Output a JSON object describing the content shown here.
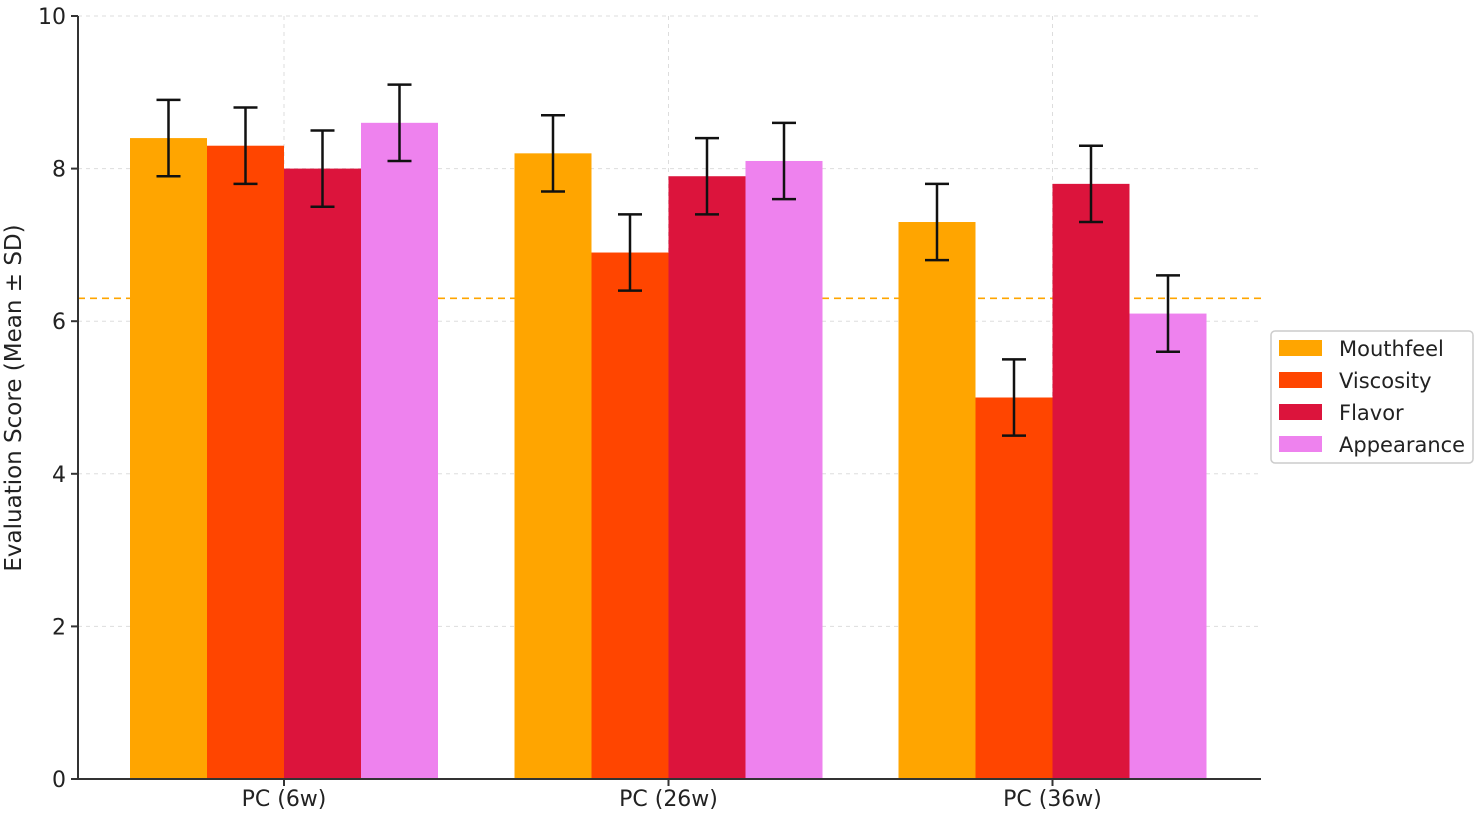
{
  "chart_data": {
    "type": "bar",
    "title": "",
    "xlabel": "",
    "ylabel": "Evaluation Score (Mean ± SD)",
    "categories": [
      "PC (6w)",
      "PC (26w)",
      "PC (36w)"
    ],
    "series": [
      {
        "name": "Mouthfeel",
        "color": "#FFA500",
        "values": [
          8.4,
          8.2,
          7.3
        ],
        "errors": [
          0.5,
          0.5,
          0.5
        ]
      },
      {
        "name": "Viscosity",
        "color": "#FF4500",
        "values": [
          8.3,
          6.9,
          5.0
        ],
        "errors": [
          0.5,
          0.5,
          0.5
        ]
      },
      {
        "name": "Flavor",
        "color": "#DC143C",
        "values": [
          8.0,
          7.9,
          7.8
        ],
        "errors": [
          0.5,
          0.5,
          0.5
        ]
      },
      {
        "name": "Appearance",
        "color": "#EE82EE",
        "values": [
          8.6,
          8.1,
          6.1
        ],
        "errors": [
          0.5,
          0.5,
          0.5
        ]
      }
    ],
    "ylim": [
      0,
      10
    ],
    "yticks": [
      "0",
      "2",
      "4",
      "6",
      "8",
      "10"
    ],
    "reference_line": {
      "value": 6.3,
      "color": "#FFA500",
      "style": "dashed"
    },
    "grid": true,
    "legend_position": "right"
  }
}
